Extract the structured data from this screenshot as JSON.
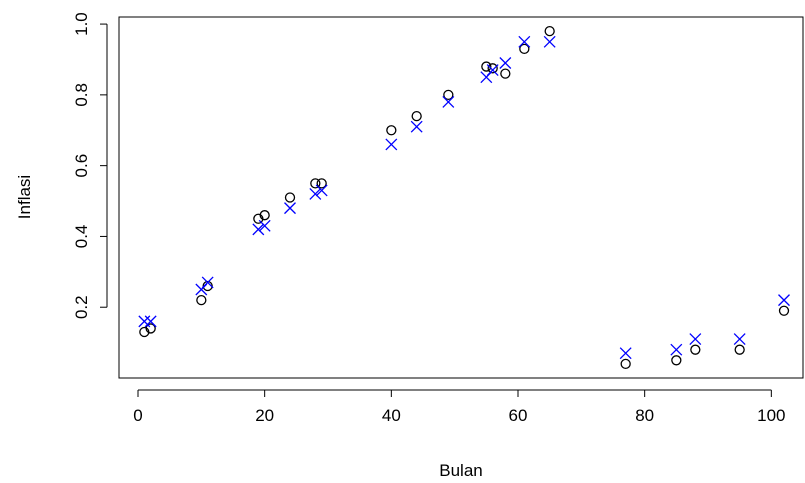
{
  "chart_data": {
    "type": "scatter",
    "xlabel": "Bulan",
    "ylabel": "Inflasi",
    "xlim": [
      -3,
      105
    ],
    "ylim": [
      0.0,
      1.02
    ],
    "x_ticks": [
      0,
      20,
      40,
      60,
      80,
      100
    ],
    "y_ticks": [
      0.2,
      0.4,
      0.6,
      0.8,
      1.0
    ],
    "x_tick_labels": [
      "0",
      "20",
      "40",
      "60",
      "80",
      "100"
    ],
    "y_tick_labels": [
      "0.2",
      "0.4",
      "0.6",
      "0.8",
      "1.0"
    ],
    "grid": false,
    "series": [
      {
        "marker": "circle",
        "color": "#000000",
        "points": [
          [
            1,
            0.13
          ],
          [
            2,
            0.14
          ],
          [
            10,
            0.22
          ],
          [
            11,
            0.26
          ],
          [
            19,
            0.45
          ],
          [
            20,
            0.46
          ],
          [
            24,
            0.51
          ],
          [
            28,
            0.55
          ],
          [
            29,
            0.55
          ],
          [
            40,
            0.7
          ],
          [
            44,
            0.74
          ],
          [
            49,
            0.8
          ],
          [
            55,
            0.88
          ],
          [
            56,
            0.875
          ],
          [
            58,
            0.86
          ],
          [
            61,
            0.93
          ],
          [
            65,
            0.98
          ],
          [
            77,
            0.04
          ],
          [
            85,
            0.05
          ],
          [
            88,
            0.08
          ],
          [
            95,
            0.08
          ],
          [
            102,
            0.19
          ]
        ]
      },
      {
        "marker": "x",
        "color": "#0000ff",
        "points": [
          [
            1,
            0.16
          ],
          [
            2,
            0.16
          ],
          [
            10,
            0.25
          ],
          [
            11,
            0.27
          ],
          [
            19,
            0.42
          ],
          [
            20,
            0.43
          ],
          [
            24,
            0.48
          ],
          [
            28,
            0.52
          ],
          [
            29,
            0.53
          ],
          [
            40,
            0.66
          ],
          [
            44,
            0.71
          ],
          [
            49,
            0.78
          ],
          [
            55,
            0.85
          ],
          [
            56,
            0.87
          ],
          [
            58,
            0.89
          ],
          [
            61,
            0.95
          ],
          [
            65,
            0.95
          ],
          [
            77,
            0.07
          ],
          [
            85,
            0.08
          ],
          [
            88,
            0.11
          ],
          [
            95,
            0.11
          ],
          [
            102,
            0.22
          ]
        ]
      }
    ]
  }
}
